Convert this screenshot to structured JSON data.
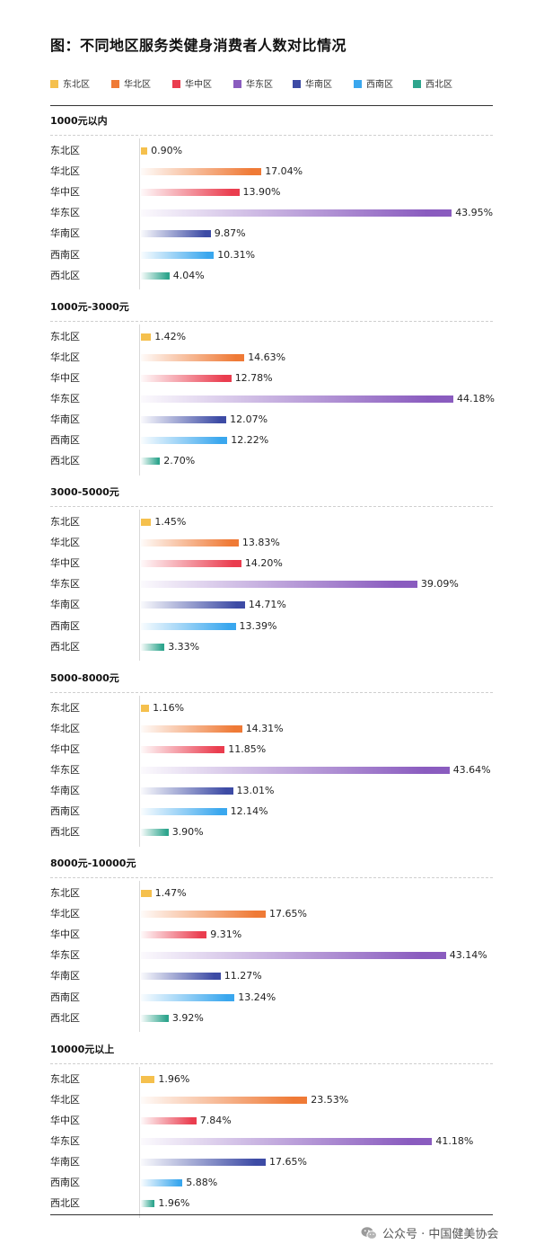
{
  "title": "图：不同地区服务类健身消费者人数对比情况",
  "footer": {
    "text": "公众号 · 中国健美协会"
  },
  "chart_data": {
    "type": "bar",
    "orientation": "horizontal",
    "value_format": "percent",
    "xlim": [
      0,
      50
    ],
    "grid": false,
    "legend_position": "top",
    "categories": [
      "东北区",
      "华北区",
      "华中区",
      "华东区",
      "华南区",
      "西南区",
      "西北区"
    ],
    "colors": {
      "东北区": "#f5c04d",
      "华北区": "#ef7a36",
      "华中区": "#ea3d4f",
      "华东区": "#8a5cbf",
      "华南区": "#3d4ba5",
      "西南区": "#3aa7ee",
      "西北区": "#2ea58d"
    },
    "groups": [
      {
        "name": "1000元以内",
        "values": [
          0.9,
          17.04,
          13.9,
          43.95,
          9.87,
          10.31,
          4.04
        ],
        "labels": [
          "0.90%",
          "17.04%",
          "13.90%",
          "43.95%",
          "9.87%",
          "10.31%",
          "4.04%"
        ]
      },
      {
        "name": "1000元-3000元",
        "values": [
          1.42,
          14.63,
          12.78,
          44.18,
          12.07,
          12.22,
          2.7
        ],
        "labels": [
          "1.42%",
          "14.63%",
          "12.78%",
          "44.18%",
          "12.07%",
          "12.22%",
          "2.70%"
        ]
      },
      {
        "name": "3000-5000元",
        "values": [
          1.45,
          13.83,
          14.2,
          39.09,
          14.71,
          13.39,
          3.33
        ],
        "labels": [
          "1.45%",
          "13.83%",
          "14.20%",
          "39.09%",
          "14.71%",
          "13.39%",
          "3.33%"
        ]
      },
      {
        "name": "5000-8000元",
        "values": [
          1.16,
          14.31,
          11.85,
          43.64,
          13.01,
          12.14,
          3.9
        ],
        "labels": [
          "1.16%",
          "14.31%",
          "11.85%",
          "43.64%",
          "13.01%",
          "12.14%",
          "3.90%"
        ]
      },
      {
        "name": "8000元-10000元",
        "values": [
          1.47,
          17.65,
          9.31,
          43.14,
          11.27,
          13.24,
          3.92
        ],
        "labels": [
          "1.47%",
          "17.65%",
          "9.31%",
          "43.14%",
          "11.27%",
          "13.24%",
          "3.92%"
        ]
      },
      {
        "name": "10000元以上",
        "values": [
          1.96,
          23.53,
          7.84,
          41.18,
          17.65,
          5.88,
          1.96
        ],
        "labels": [
          "1.96%",
          "23.53%",
          "7.84%",
          "41.18%",
          "17.65%",
          "5.88%",
          "1.96%"
        ]
      }
    ]
  }
}
